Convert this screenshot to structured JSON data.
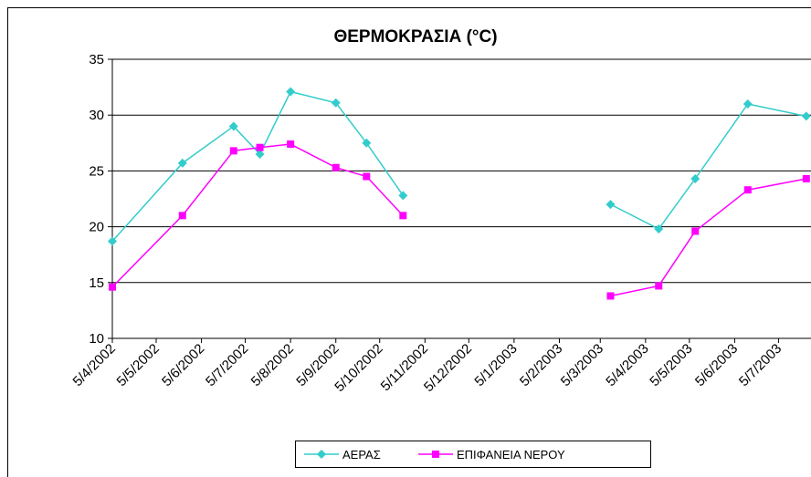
{
  "chart_data": {
    "type": "line",
    "title": "ΘΕΡΜΟΚΡΑΣΙΑ (°C)",
    "x": [
      "5/4/2002",
      "23/5/2002",
      "27/6/2002",
      "15/7/2002",
      "5/8/2002",
      "5/9/2002",
      "26/9/2002",
      "21/10/2002",
      "5/1/2003",
      "12/3/2003",
      "14/4/2003",
      "9/5/2003",
      "14/6/2003",
      "24/7/2003"
    ],
    "series": [
      {
        "name": "ΑΕΡΑΣ",
        "color": "#33cccc",
        "marker": "diamond",
        "values": [
          18.7,
          25.7,
          29.0,
          26.5,
          32.1,
          31.1,
          27.5,
          22.8,
          null,
          22.0,
          19.8,
          24.3,
          31.0,
          29.9
        ]
      },
      {
        "name": "ΕΠΙΦΑΝΕΙΑ ΝΕΡΟΥ",
        "color": "#ff00ff",
        "marker": "square",
        "values": [
          14.6,
          21.0,
          26.8,
          27.1,
          27.4,
          25.3,
          24.5,
          21.0,
          null,
          13.8,
          14.7,
          19.6,
          23.3,
          24.3
        ]
      }
    ],
    "xlim": [
      "5/4/2002",
      "5/8/2003"
    ],
    "xticks": [
      "5/4/2002",
      "5/5/2002",
      "5/6/2002",
      "5/7/2002",
      "5/8/2002",
      "5/9/2002",
      "5/10/2002",
      "5/11/2002",
      "5/12/2002",
      "5/1/2003",
      "5/2/2003",
      "5/3/2003",
      "5/4/2003",
      "5/5/2003",
      "5/6/2003",
      "5/7/2003"
    ],
    "ylim": [
      10,
      35
    ],
    "yticks": [
      10,
      15,
      20,
      25,
      30,
      35
    ],
    "grid": true,
    "legend": "bottom"
  }
}
